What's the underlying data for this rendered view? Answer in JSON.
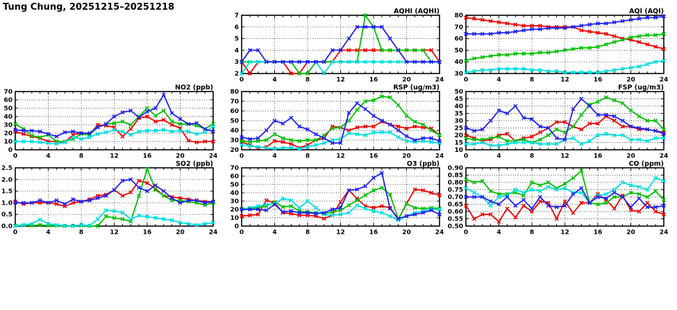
{
  "page_title": "Tung Chung, 20251215–20251218",
  "colors": {
    "red": "#ee0000",
    "green": "#00c000",
    "cyan": "#00dede",
    "blue": "#2020f0"
  },
  "chart_data": [
    {
      "id": "aqhi",
      "type": "line",
      "title": "AQHI (AQHI)",
      "x_range": [
        0,
        24
      ],
      "xticks": [
        0,
        4,
        8,
        12,
        16,
        20,
        24
      ],
      "x_minor_step": 1,
      "ylim": [
        2,
        7
      ],
      "yticks": [
        "2",
        "3",
        "4",
        "5",
        "6",
        "7"
      ],
      "grid": true,
      "legend": "none",
      "series": [
        {
          "color": "red",
          "values": [
            3,
            2,
            3,
            3,
            3,
            3,
            2,
            2,
            3,
            3,
            3,
            3,
            4,
            4,
            4,
            4,
            4,
            4,
            4,
            4,
            4,
            4,
            4,
            4,
            3
          ]
        },
        {
          "color": "green",
          "values": [
            3,
            3,
            3,
            3,
            3,
            3,
            3,
            2,
            2,
            3,
            3,
            3,
            3,
            3,
            3,
            7,
            6,
            4,
            4,
            4,
            4,
            4,
            4,
            3,
            3
          ]
        },
        {
          "color": "cyan",
          "values": [
            2,
            3,
            3,
            3,
            3,
            3,
            3,
            3,
            3,
            3,
            2,
            3,
            3,
            3,
            3,
            3,
            3,
            3,
            3,
            3,
            3,
            3,
            3,
            3,
            3
          ]
        },
        {
          "color": "blue",
          "values": [
            3,
            4,
            4,
            3,
            3,
            3,
            3,
            3,
            3,
            3,
            3,
            4,
            4,
            5,
            6,
            6,
            6,
            6,
            5,
            4,
            3,
            3,
            3,
            3,
            3
          ]
        }
      ]
    },
    {
      "id": "aqi",
      "type": "line",
      "title": "AQI (AQI)",
      "x_range": [
        0,
        24
      ],
      "xticks": [
        0,
        4,
        8,
        12,
        16,
        20,
        24
      ],
      "x_minor_step": 1,
      "ylim": [
        30,
        80
      ],
      "yticks": [
        "30",
        "40",
        "50",
        "60",
        "70",
        "80"
      ],
      "grid": true,
      "legend": "none",
      "series": [
        {
          "color": "red",
          "values": [
            78,
            77,
            76,
            75,
            74,
            73,
            72,
            71,
            71,
            71,
            70,
            70,
            70,
            70,
            67,
            66,
            65,
            64,
            62,
            60,
            59,
            57,
            55,
            53,
            51
          ]
        },
        {
          "color": "green",
          "values": [
            41,
            43,
            44,
            45,
            46,
            46,
            47,
            47,
            47,
            48,
            48,
            49,
            50,
            51,
            52,
            52,
            53,
            55,
            57,
            59,
            61,
            62,
            63,
            63,
            64
          ]
        },
        {
          "color": "cyan",
          "values": [
            31,
            32,
            33,
            33,
            34,
            34,
            34,
            34,
            33,
            33,
            32,
            32,
            31,
            31,
            31,
            31,
            31,
            32,
            33,
            34,
            35,
            36,
            38,
            40,
            41
          ]
        },
        {
          "color": "blue",
          "values": [
            64,
            64,
            64,
            64,
            65,
            65,
            66,
            67,
            68,
            68,
            69,
            69,
            69,
            70,
            71,
            72,
            73,
            73,
            74,
            75,
            76,
            77,
            78,
            78,
            79
          ]
        }
      ]
    },
    {
      "id": "no2",
      "type": "line",
      "title": "NO2 (ppb)",
      "x_range": [
        0,
        24
      ],
      "xticks": [
        0,
        4,
        8,
        12,
        16,
        20,
        24
      ],
      "x_minor_step": 1,
      "ylim": [
        0,
        70
      ],
      "yticks": [
        "0",
        "10",
        "20",
        "30",
        "40",
        "50",
        "60",
        "70"
      ],
      "grid": true,
      "legend": "none",
      "series": [
        {
          "color": "red",
          "values": [
            22,
            19,
            16,
            14,
            10,
            10,
            9,
            18,
            20,
            18,
            30,
            29,
            27,
            16,
            25,
            38,
            40,
            34,
            36,
            30,
            26,
            11,
            9,
            10,
            10
          ]
        },
        {
          "color": "green",
          "values": [
            31,
            25,
            17,
            15,
            18,
            10,
            10,
            13,
            19,
            18,
            27,
            31,
            32,
            34,
            30,
            40,
            50,
            41,
            47,
            34,
            31,
            31,
            29,
            25,
            31
          ]
        },
        {
          "color": "cyan",
          "values": [
            10,
            10,
            10,
            9,
            8,
            7,
            9,
            15,
            13,
            15,
            19,
            21,
            24,
            22,
            18,
            22,
            23,
            23,
            24,
            22,
            23,
            22,
            19,
            21,
            28
          ]
        },
        {
          "color": "blue",
          "values": [
            24,
            23,
            23,
            22,
            19,
            16,
            21,
            22,
            20,
            20,
            27,
            31,
            40,
            45,
            47,
            39,
            46,
            50,
            66,
            44,
            37,
            31,
            32,
            25,
            22
          ]
        }
      ]
    },
    {
      "id": "rsp",
      "type": "line",
      "title": "RSP (ug/m3)",
      "x_range": [
        0,
        24
      ],
      "xticks": [
        0,
        4,
        8,
        12,
        16,
        20,
        24
      ],
      "x_minor_step": 1,
      "ylim": [
        20,
        80
      ],
      "yticks": [
        "20",
        "30",
        "40",
        "50",
        "60",
        "70",
        "80"
      ],
      "grid": true,
      "legend": "none",
      "series": [
        {
          "color": "red",
          "values": [
            28,
            25,
            22,
            23,
            29,
            28,
            26,
            22,
            25,
            30,
            32,
            44,
            43,
            40,
            43,
            44,
            44,
            49,
            46,
            44,
            42,
            44,
            43,
            42,
            35
          ]
        },
        {
          "color": "green",
          "values": [
            29,
            28,
            29,
            30,
            36,
            32,
            30,
            29,
            30,
            30,
            35,
            42,
            43,
            50,
            61,
            70,
            71,
            75,
            74,
            66,
            55,
            49,
            46,
            40,
            35
          ]
        },
        {
          "color": "cyan",
          "values": [
            25,
            24,
            23,
            22,
            21,
            22,
            22,
            21,
            23,
            25,
            27,
            30,
            31,
            37,
            36,
            35,
            38,
            38,
            38,
            33,
            29,
            28,
            29,
            28,
            27
          ]
        },
        {
          "color": "blue",
          "values": [
            33,
            31,
            32,
            40,
            50,
            47,
            53,
            44,
            41,
            36,
            32,
            27,
            27,
            58,
            68,
            62,
            55,
            50,
            46,
            40,
            34,
            30,
            32,
            32,
            29
          ]
        }
      ]
    },
    {
      "id": "fsp",
      "type": "line",
      "title": "FSP (ug/m3)",
      "x_range": [
        0,
        24
      ],
      "xticks": [
        0,
        4,
        8,
        12,
        16,
        20,
        24
      ],
      "x_minor_step": 1,
      "ylim": [
        10,
        50
      ],
      "yticks": [
        "10",
        "15",
        "20",
        "25",
        "30",
        "35",
        "40",
        "45",
        "50"
      ],
      "grid": true,
      "legend": "none",
      "series": [
        {
          "color": "red",
          "values": [
            20,
            18,
            16,
            17,
            20,
            21,
            16,
            18,
            19,
            22,
            25,
            29,
            29,
            26,
            24,
            28,
            28,
            33,
            30,
            26,
            26,
            24,
            24,
            23,
            22
          ]
        },
        {
          "color": "green",
          "values": [
            18,
            17,
            17,
            18,
            19,
            16,
            16,
            17,
            15,
            17,
            20,
            24,
            22,
            26,
            34,
            41,
            43,
            46,
            44,
            42,
            37,
            33,
            30,
            30,
            24
          ]
        },
        {
          "color": "cyan",
          "values": [
            14,
            14,
            15,
            13,
            13,
            14,
            15,
            15,
            15,
            14,
            14,
            14,
            17,
            18,
            14,
            16,
            20,
            21,
            20,
            20,
            17,
            17,
            16,
            18,
            18
          ]
        },
        {
          "color": "blue",
          "values": [
            25,
            23,
            24,
            30,
            37,
            35,
            40,
            32,
            31,
            26,
            25,
            18,
            17,
            38,
            45,
            40,
            34,
            34,
            33,
            30,
            26,
            25,
            24,
            23,
            21
          ]
        }
      ]
    },
    {
      "id": "so2",
      "type": "line",
      "title": "SO2 (ppb)",
      "x_range": [
        0,
        24
      ],
      "xticks": [
        0,
        4,
        8,
        12,
        16,
        20,
        24
      ],
      "x_minor_step": 1,
      "ylim": [
        0,
        2.5
      ],
      "yticks": [
        "0.0",
        "0.5",
        "1.0",
        "1.5",
        "2.0",
        "2.5"
      ],
      "grid": true,
      "legend": "none",
      "series": [
        {
          "color": "red",
          "values": [
            1.05,
            0.95,
            1.0,
            1.0,
            1.0,
            0.95,
            0.85,
            1.0,
            1.05,
            1.15,
            1.3,
            1.35,
            1.55,
            1.3,
            1.45,
            1.95,
            1.85,
            1.6,
            1.3,
            1.25,
            1.2,
            1.15,
            1.1,
            1.05,
            1.05
          ]
        },
        {
          "color": "green",
          "values": [
            0.02,
            0.05,
            0.02,
            0.05,
            0.02,
            0.02,
            0.0,
            0.02,
            0.02,
            0.0,
            0.0,
            0.42,
            0.35,
            0.3,
            0.2,
            1.3,
            2.45,
            1.55,
            1.3,
            1.1,
            1.1,
            1.05,
            1.0,
            0.9,
            1.0
          ]
        },
        {
          "color": "cyan",
          "values": [
            0.0,
            0.05,
            0.1,
            0.28,
            0.1,
            0.05,
            0.02,
            0.0,
            0.05,
            0.02,
            0.3,
            0.68,
            0.65,
            0.58,
            0.3,
            0.45,
            0.4,
            0.35,
            0.3,
            0.25,
            0.15,
            0.1,
            0.05,
            0.1,
            0.15
          ]
        },
        {
          "color": "blue",
          "values": [
            1.0,
            1.0,
            1.0,
            1.1,
            1.0,
            1.1,
            0.95,
            1.15,
            1.05,
            1.1,
            1.2,
            1.3,
            1.55,
            1.95,
            2.0,
            1.65,
            1.5,
            1.75,
            1.5,
            1.2,
            1.0,
            1.1,
            1.1,
            1.0,
            1.05
          ]
        }
      ]
    },
    {
      "id": "o3",
      "type": "line",
      "title": "O3 (ppb)",
      "x_range": [
        0,
        24
      ],
      "xticks": [
        0,
        4,
        8,
        12,
        16,
        20,
        24
      ],
      "x_minor_step": 1,
      "ylim": [
        0,
        70
      ],
      "yticks": [
        "0",
        "10",
        "20",
        "30",
        "40",
        "50",
        "60",
        "70"
      ],
      "grid": true,
      "legend": "none",
      "series": [
        {
          "color": "red",
          "values": [
            12,
            13,
            14,
            31,
            28,
            16,
            15,
            13,
            13,
            12,
            9,
            13,
            29,
            43,
            33,
            24,
            22,
            24,
            22,
            8,
            27,
            44,
            43,
            40,
            37
          ]
        },
        {
          "color": "green",
          "values": [
            21,
            21,
            22,
            24,
            29,
            23,
            24,
            18,
            17,
            16,
            15,
            17,
            19,
            25,
            31,
            37,
            43,
            46,
            38,
            8,
            27,
            22,
            21,
            22,
            21
          ]
        },
        {
          "color": "cyan",
          "values": [
            20,
            22,
            24,
            26,
            27,
            33,
            31,
            22,
            30,
            22,
            14,
            13,
            14,
            16,
            25,
            21,
            18,
            16,
            12,
            7,
            12,
            16,
            18,
            20,
            20
          ]
        },
        {
          "color": "blue",
          "values": [
            20,
            20,
            20,
            19,
            26,
            17,
            18,
            16,
            16,
            15,
            16,
            20,
            22,
            43,
            44,
            48,
            58,
            64,
            21,
            9,
            12,
            14,
            16,
            19,
            14
          ]
        }
      ]
    },
    {
      "id": "co",
      "type": "line",
      "title": "CO (ppm)",
      "x_range": [
        0,
        24
      ],
      "xticks": [
        0,
        4,
        8,
        12,
        16,
        20,
        24
      ],
      "x_minor_step": 1,
      "ylim": [
        0.5,
        0.9
      ],
      "yticks": [
        "0.50",
        "0.55",
        "0.60",
        "0.65",
        "0.70",
        "0.75",
        "0.80",
        "0.85",
        "0.90"
      ],
      "grid": true,
      "legend": "none",
      "series": [
        {
          "color": "red",
          "values": [
            0.64,
            0.55,
            0.58,
            0.58,
            0.53,
            0.62,
            0.56,
            0.64,
            0.6,
            0.67,
            0.66,
            0.55,
            0.67,
            0.59,
            0.66,
            0.66,
            0.72,
            0.68,
            0.62,
            0.71,
            0.61,
            0.6,
            0.66,
            0.6,
            0.58
          ]
        },
        {
          "color": "green",
          "values": [
            0.82,
            0.8,
            0.81,
            0.74,
            0.72,
            0.72,
            0.73,
            0.71,
            0.8,
            0.78,
            0.8,
            0.76,
            0.79,
            0.83,
            0.88,
            0.66,
            0.65,
            0.66,
            0.7,
            0.7,
            0.73,
            0.72,
            0.7,
            0.74,
            0.68
          ]
        },
        {
          "color": "cyan",
          "values": [
            0.76,
            0.73,
            0.7,
            0.64,
            0.7,
            0.71,
            0.75,
            0.73,
            0.75,
            0.74,
            0.77,
            0.75,
            0.76,
            0.73,
            0.73,
            0.66,
            0.71,
            0.72,
            0.75,
            0.8,
            0.78,
            0.77,
            0.75,
            0.83,
            0.81
          ]
        },
        {
          "color": "blue",
          "values": [
            0.7,
            0.7,
            0.7,
            0.67,
            0.65,
            0.7,
            0.64,
            0.68,
            0.62,
            0.7,
            0.64,
            0.63,
            0.64,
            0.72,
            0.76,
            0.66,
            0.7,
            0.69,
            0.73,
            0.7,
            0.63,
            0.69,
            0.63,
            0.63,
            0.64
          ]
        }
      ]
    }
  ]
}
